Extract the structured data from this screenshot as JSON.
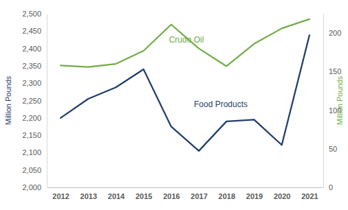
{
  "chart_data": {
    "type": "line",
    "y_label": "Million Pounds",
    "y2_label": "Million Pounds",
    "categories": [
      "2012",
      "2013",
      "2014",
      "2015",
      "2016",
      "2017",
      "2018",
      "2019",
      "2020",
      "2021"
    ],
    "series": [
      {
        "name": "Food Products",
        "color": "#1f3d6b",
        "values": [
          2200,
          2255,
          2288,
          2340,
          2175,
          2105,
          2190,
          2195,
          2122,
          2438
        ]
      },
      {
        "name": "Crude Oil",
        "color": "#70ad47",
        "axis": "y2",
        "values": [
          158,
          156,
          160,
          177,
          211,
          180,
          157,
          186,
          206,
          218
        ]
      }
    ],
    "ylim": [
      2000,
      2500
    ],
    "yticks": [
      {
        "value": 2000,
        "label": "2,000"
      },
      {
        "value": 2050,
        "label": "2,050"
      },
      {
        "value": 2100,
        "label": "2,100"
      },
      {
        "value": 2150,
        "label": "2,150"
      },
      {
        "value": 2200,
        "label": "2,200"
      },
      {
        "value": 2250,
        "label": "2,250"
      },
      {
        "value": 2300,
        "label": "2,300"
      },
      {
        "value": 2350,
        "label": "2,350"
      },
      {
        "value": 2400,
        "label": "2,400"
      },
      {
        "value": 2450,
        "label": "2,450"
      },
      {
        "value": 2500,
        "label": "2,500"
      }
    ],
    "y2lim": [
      0,
      225
    ],
    "y2ticks": [
      0,
      50,
      100,
      150,
      200
    ],
    "grid": false
  }
}
